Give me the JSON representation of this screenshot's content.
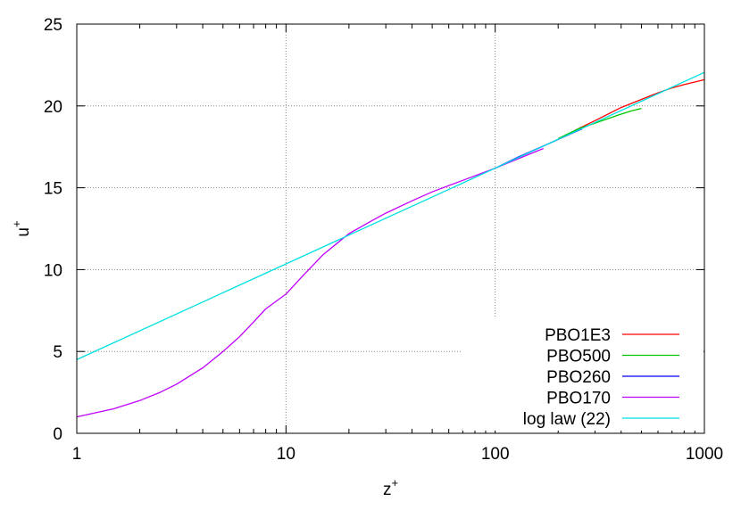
{
  "chart_data": {
    "type": "line",
    "title": "",
    "xlabel": {
      "base": "z",
      "sup": "+"
    },
    "ylabel": {
      "base": "u",
      "sup": "+"
    },
    "xscale": "log",
    "xlim": [
      1,
      1000
    ],
    "ylim": [
      0,
      25
    ],
    "x_ticks": [
      "1",
      "10",
      "100",
      "1000"
    ],
    "y_ticks": [
      "0",
      "5",
      "10",
      "15",
      "20",
      "25"
    ],
    "grid": true,
    "legend_position": "bottom-right",
    "series": [
      {
        "name": "PBO1E3",
        "color": "#ff0000",
        "x": [
          240,
          300,
          400,
          500,
          600,
          700,
          800,
          1000
        ],
        "y": [
          18.5,
          19.1,
          19.9,
          20.4,
          20.8,
          21.1,
          21.3,
          21.6
        ]
      },
      {
        "name": "PBO500",
        "color": "#00c800",
        "x": [
          200,
          250,
          300,
          350,
          400,
          450,
          500
        ],
        "y": [
          18.0,
          18.6,
          18.95,
          19.25,
          19.5,
          19.7,
          19.85
        ]
      },
      {
        "name": "PBO260",
        "color": "#0000ff",
        "x": [
          100,
          130,
          160,
          200,
          230,
          260
        ],
        "y": [
          16.2,
          16.9,
          17.4,
          17.95,
          18.3,
          18.6
        ]
      },
      {
        "name": "PBO170",
        "color": "#c000ff",
        "x": [
          1,
          1.5,
          2,
          2.5,
          3,
          4,
          5,
          6,
          7,
          8,
          10,
          12,
          15,
          20,
          25,
          30,
          40,
          50,
          70,
          100,
          130,
          170
        ],
        "y": [
          1.0,
          1.5,
          2.0,
          2.5,
          3.0,
          4.0,
          5.0,
          5.9,
          6.8,
          7.6,
          8.5,
          9.6,
          10.9,
          12.2,
          12.9,
          13.45,
          14.2,
          14.75,
          15.45,
          16.2,
          16.8,
          17.4
        ]
      },
      {
        "name": "log law (22)",
        "color": "#00e0e0",
        "x": [
          1,
          1000
        ],
        "y": [
          4.5,
          22.05
        ]
      }
    ]
  }
}
